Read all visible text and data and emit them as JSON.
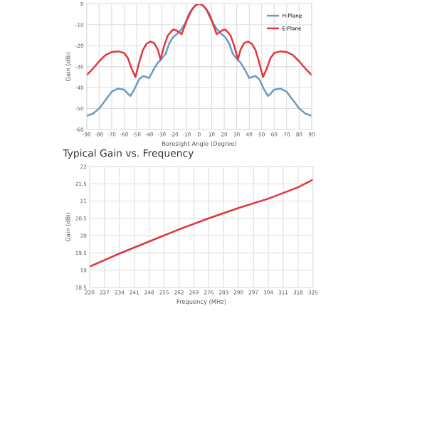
{
  "chart_data": [
    {
      "type": "line",
      "xlabel": "Boresight Angle (Degree)",
      "ylabel": "Gain (dBi)",
      "xlim": [
        -90,
        90
      ],
      "xticks": [
        -90,
        -80,
        -70,
        -60,
        -50,
        -40,
        -30,
        -20,
        -10,
        0,
        10,
        20,
        30,
        40,
        50,
        60,
        70,
        80,
        90
      ],
      "ylim": [
        -60,
        0
      ],
      "yticks": [
        -60,
        -50,
        -40,
        -30,
        -20,
        -10,
        0
      ],
      "grid": true,
      "legend": "top right",
      "marker": "none",
      "series": [
        {
          "name": "H-Plane",
          "color": "#6a9bc3",
          "x": [
            -90,
            -85,
            -80,
            -75,
            -70,
            -65,
            -60,
            -57,
            -55,
            -52,
            -48,
            -45,
            -42,
            -40,
            -37,
            -33,
            -31,
            -27,
            -24,
            -21,
            -17,
            -14,
            -11,
            -8,
            -5,
            -3,
            0,
            3,
            5,
            8,
            11,
            14,
            17,
            21,
            24,
            27,
            31,
            33,
            37,
            40,
            42,
            45,
            48,
            52,
            55,
            57,
            60,
            65,
            70,
            75,
            80,
            85,
            90
          ],
          "values": [
            -53.5,
            -52.5,
            -50,
            -46,
            -42,
            -40.5,
            -41,
            -43,
            -44,
            -41,
            -36,
            -34.5,
            -35,
            -35.5,
            -32,
            -28,
            -27,
            -24,
            -19,
            -16,
            -14,
            -12,
            -9,
            -4.5,
            -2,
            -0.8,
            0,
            -0.8,
            -2,
            -4.5,
            -9,
            -12,
            -14,
            -16,
            -19,
            -24,
            -27,
            -28,
            -32,
            -35.5,
            -35,
            -34.5,
            -36,
            -41,
            -44,
            -43,
            -41,
            -40.5,
            -42,
            -46,
            -50,
            -52.5,
            -53.5
          ]
        },
        {
          "name": "E-Plane",
          "color": "#e0383e",
          "x": [
            -90,
            -85,
            -80,
            -75,
            -70,
            -65,
            -60,
            -57,
            -54,
            -51,
            -48,
            -45,
            -42,
            -39,
            -36,
            -33,
            -31,
            -28,
            -25,
            -21,
            -18,
            -14,
            -10,
            -6,
            -3,
            0,
            3,
            6,
            10,
            14,
            18,
            21,
            25,
            28,
            31,
            33,
            36,
            39,
            42,
            45,
            48,
            51,
            54,
            57,
            60,
            65,
            70,
            75,
            80,
            85,
            90
          ],
          "values": [
            -34,
            -31,
            -27.5,
            -24.5,
            -23,
            -22.7,
            -23.5,
            -26,
            -31,
            -35,
            -28,
            -22,
            -19,
            -18,
            -18.8,
            -22,
            -26.5,
            -20,
            -15,
            -12.3,
            -12.8,
            -14.5,
            -8,
            -3,
            -0.7,
            0,
            -0.7,
            -3,
            -8,
            -14.5,
            -12.8,
            -12.3,
            -15,
            -20,
            -26.5,
            -22,
            -18.8,
            -18,
            -19,
            -22,
            -28,
            -35,
            -31,
            -26,
            -23.5,
            -22.7,
            -23,
            -24.5,
            -27.5,
            -31,
            -34
          ]
        }
      ]
    },
    {
      "type": "line",
      "title": "Typical Gain vs. Frequency",
      "xlabel": "Frequency (MHz)",
      "ylabel": "Gain (dBi)",
      "xlim": [
        220,
        325
      ],
      "xticks": [
        220,
        227,
        234,
        241,
        248,
        255,
        262,
        269,
        276,
        283,
        290,
        297,
        304,
        311,
        318,
        325
      ],
      "ylim": [
        18.5,
        22
      ],
      "yticks": [
        18.5,
        19,
        19.5,
        20,
        20.5,
        21,
        21.5,
        22
      ],
      "grid": true,
      "marker": "none",
      "series": [
        {
          "color": "#e0383e",
          "x": [
            220,
            234,
            248,
            262,
            276,
            290,
            304,
            318,
            325
          ],
          "values": [
            19.1,
            19.48,
            19.83,
            20.18,
            20.5,
            20.8,
            21.07,
            21.4,
            21.62
          ]
        }
      ]
    }
  ]
}
